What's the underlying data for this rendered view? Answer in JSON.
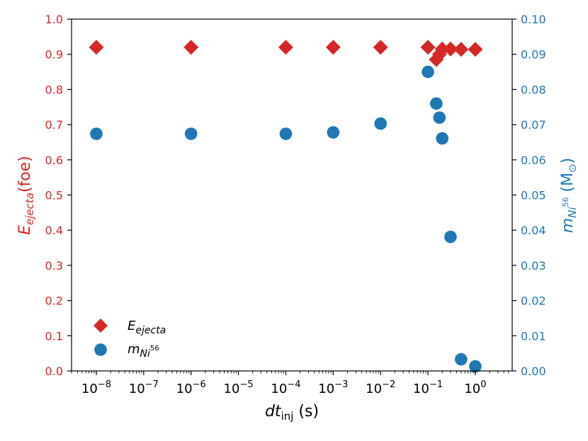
{
  "colors": {
    "left": "#d62728",
    "right": "#1f77b4",
    "axis": "#000000"
  },
  "chart_data": {
    "type": "scatter",
    "x_scale": "log",
    "xlim": [
      3e-09,
      6
    ],
    "xlabel": {
      "main": "dt",
      "sub": "inj",
      "unit": " (s)"
    },
    "x_ticks": [
      {
        "value": 1e-08,
        "base": "10",
        "exp": "−8"
      },
      {
        "value": 1e-07,
        "base": "10",
        "exp": "−7"
      },
      {
        "value": 1e-06,
        "base": "10",
        "exp": "−6"
      },
      {
        "value": 1e-05,
        "base": "10",
        "exp": "−5"
      },
      {
        "value": 0.0001,
        "base": "10",
        "exp": "−4"
      },
      {
        "value": 0.001,
        "base": "10",
        "exp": "−3"
      },
      {
        "value": 0.01,
        "base": "10",
        "exp": "−2"
      },
      {
        "value": 0.1,
        "base": "10",
        "exp": "−1"
      },
      {
        "value": 1,
        "base": "10",
        "exp": "0"
      }
    ],
    "y_left": {
      "label": {
        "main": "E",
        "sub": "ejecta",
        "unit": "(foe)"
      },
      "lim": [
        0.0,
        1.0
      ],
      "ticks": [
        "0.0",
        "0.1",
        "0.2",
        "0.3",
        "0.4",
        "0.5",
        "0.6",
        "0.7",
        "0.8",
        "0.9",
        "1.0"
      ]
    },
    "y_right": {
      "label": {
        "main": "m",
        "sub": "Ni",
        "sup": "56",
        "unit": " (M",
        "unit_sub": "⊙",
        "unit_close": ")"
      },
      "lim": [
        0.0,
        0.1
      ],
      "ticks": [
        "0.00",
        "0.01",
        "0.02",
        "0.03",
        "0.04",
        "0.05",
        "0.06",
        "0.07",
        "0.08",
        "0.09",
        "0.10"
      ]
    },
    "series": [
      {
        "name": "E_ejecta",
        "axis": "left",
        "marker": "diamond",
        "legend": {
          "main": "E",
          "sub": "ejecta"
        },
        "x": [
          1e-08,
          1e-06,
          0.0001,
          0.001,
          0.01,
          0.1,
          0.15,
          0.175,
          0.2,
          0.3,
          0.5,
          1.0
        ],
        "y": [
          0.92,
          0.92,
          0.92,
          0.92,
          0.92,
          0.92,
          0.885,
          0.9,
          0.915,
          0.915,
          0.914,
          0.914
        ]
      },
      {
        "name": "m_Ni56",
        "axis": "right",
        "marker": "circle",
        "legend": {
          "main": "m",
          "sub": "Ni",
          "sup": "56"
        },
        "x": [
          1e-08,
          1e-06,
          0.0001,
          0.001,
          0.01,
          0.1,
          0.15,
          0.175,
          0.2,
          0.3,
          0.5,
          1.0
        ],
        "y": [
          0.0674,
          0.0674,
          0.0674,
          0.0678,
          0.0703,
          0.085,
          0.076,
          0.072,
          0.0661,
          0.0381,
          0.0033,
          0.0013
        ]
      }
    ]
  }
}
